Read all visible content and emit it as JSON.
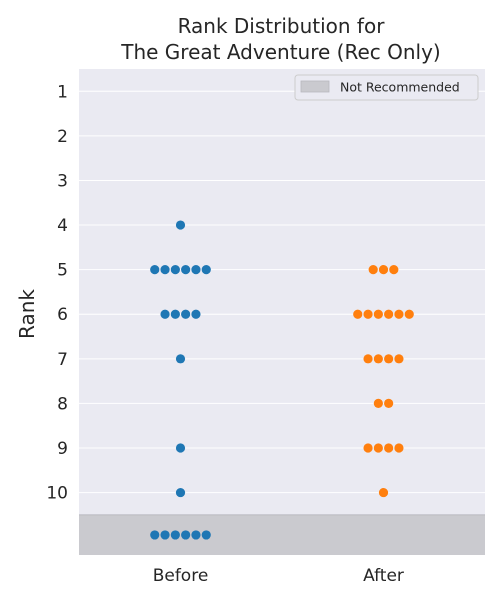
{
  "chart_data": {
    "type": "scatter",
    "title_lines": [
      "Rank Distribution for",
      "The Great Adventure (Rec Only)"
    ],
    "xlabel": "",
    "ylabel": "Rank",
    "categories": [
      "Before",
      "After"
    ],
    "y_ticks": [
      "1",
      "2",
      "3",
      "4",
      "5",
      "6",
      "7",
      "8",
      "9",
      "10"
    ],
    "y_range": [
      0.5,
      11.4
    ],
    "not_recommended_label": "Not Recommended",
    "not_recommended_from": 10.5,
    "grid": true,
    "legend_position": "top-right",
    "colors": {
      "Before": "#1f77b4",
      "After": "#ff7f0e",
      "background": "#eaeaf2",
      "not_recommended": "#cacacf"
    },
    "series": [
      {
        "category": "Before",
        "points": [
          {
            "rank": "4",
            "count": 1
          },
          {
            "rank": "5",
            "count": 6
          },
          {
            "rank": "6",
            "count": 4
          },
          {
            "rank": "7",
            "count": 1
          },
          {
            "rank": "9",
            "count": 1
          },
          {
            "rank": "10",
            "count": 1
          },
          {
            "rank": "Not Recommended",
            "count": 6
          }
        ]
      },
      {
        "category": "After",
        "points": [
          {
            "rank": "5",
            "count": 3
          },
          {
            "rank": "6",
            "count": 6
          },
          {
            "rank": "7",
            "count": 4
          },
          {
            "rank": "8",
            "count": 2
          },
          {
            "rank": "9",
            "count": 4
          },
          {
            "rank": "10",
            "count": 1
          }
        ]
      }
    ]
  }
}
